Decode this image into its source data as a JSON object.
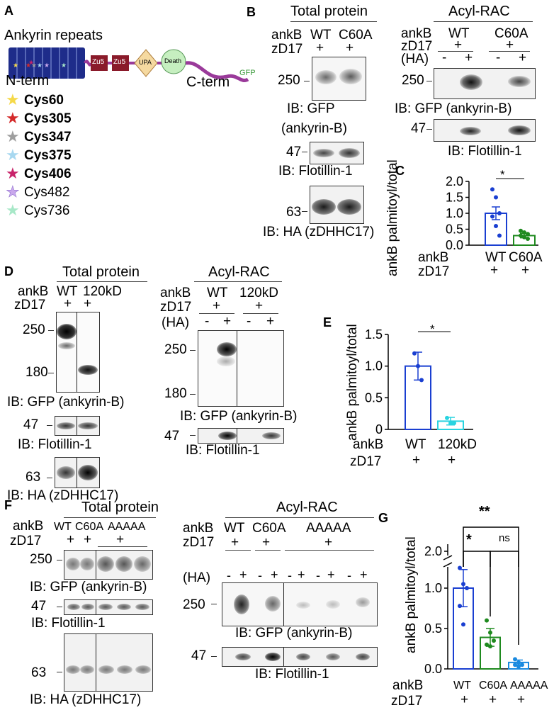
{
  "panelA": {
    "letter": "A",
    "title": "Ankyrin repeats",
    "nterm": "N-term",
    "cterm": "C-term",
    "gfp": "GFP",
    "domains": [
      "Zu5",
      "Zu5",
      "UPA",
      "Death"
    ],
    "cys": [
      {
        "label": "Cys60",
        "color": "#f5d94a",
        "bold": true
      },
      {
        "label": "Cys305",
        "color": "#d42a2a",
        "bold": true
      },
      {
        "label": "Cys347",
        "color": "#9e9e9e",
        "bold": true
      },
      {
        "label": "Cys375",
        "color": "#a8d8f0",
        "bold": true
      },
      {
        "label": "Cys406",
        "color": "#c8246a",
        "bold": true
      },
      {
        "label": "Cys482",
        "color": "#c9a8ec",
        "bold": false
      },
      {
        "label": "Cys736",
        "color": "#a8e8c8",
        "bold": false
      }
    ]
  },
  "panelB": {
    "letter": "B",
    "total_title": "Total protein",
    "acyl_title": "Acyl-RAC",
    "ankb": "ankB",
    "zd17": "zD17",
    "ha": "(HA)",
    "wt": "WT",
    "c60a": "C60A",
    "plus": "+",
    "minus": "-",
    "mw250": "250",
    "mw47": "47",
    "mw63": "63",
    "ib_gfp": "IB: GFP",
    "ankyrinb_paren": "(ankyrin-B)",
    "ib_flot": "IB: Flotillin-1",
    "ib_ha": "IB: HA (zDHHC17)",
    "ib_gfp_full": "IB: GFP (ankyrin-B)"
  },
  "panelC": {
    "letter": "C",
    "ylabel": "ankB palmitoyl/total",
    "sig": "*",
    "row1": "ankB",
    "row2": "zD17",
    "cats": [
      "WT",
      "C60A"
    ],
    "plus": "+",
    "ticks": [
      "0.0",
      "0.5",
      "1.0",
      "1.5",
      "2.0"
    ],
    "colors": {
      "WT": "#1a3fd1",
      "C60A": "#1f8a1f"
    }
  },
  "panelD": {
    "letter": "D",
    "total_title": "Total protein",
    "acyl_title": "Acyl-RAC",
    "ankb": "ankB",
    "zd17": "zD17",
    "ha": "(HA)",
    "wt": "WT",
    "mut": "120kD",
    "plus": "+",
    "minus": "-",
    "mw250": "250",
    "mw180": "180",
    "mw47": "47",
    "mw63": "63",
    "ib_gfp_full": "IB: GFP (ankyrin-B)",
    "ib_flot": "IB: Flotillin-1",
    "ib_ha": "IB: HA (zDHHC17)"
  },
  "panelE": {
    "letter": "E",
    "ylabel": "ankB palmitoyl/total",
    "sig": "*",
    "row1": "ankB",
    "row2": "zD17",
    "cats": [
      "WT",
      "120kD"
    ],
    "plus": "+",
    "ticks": [
      "0",
      "0.5",
      "1.0",
      "1.5"
    ],
    "colors": {
      "WT": "#1a3fd1",
      "120kD": "#29d3e0"
    }
  },
  "panelF": {
    "letter": "F",
    "total_title": "Total protein",
    "acyl_title": "Acyl-RAC",
    "ankb": "ankB",
    "zd17": "zD17",
    "ha": "(HA)",
    "wt": "WT",
    "c60a": "C60A",
    "aaaaa": "AAAAA",
    "plus": "+",
    "minus": "-",
    "mw250": "250",
    "mw47": "47",
    "mw63": "63",
    "ib_gfp_full": "IB: GFP (ankyrin-B)",
    "ib_flot": "IB: Flotillin-1",
    "ib_ha": "IB: HA (zDHHC17)"
  },
  "panelG": {
    "letter": "G",
    "ylabel": "ankB palmitoyl/total",
    "sig_big": "**",
    "sig_one": "*",
    "sig_ns": "ns",
    "row1": "ankB",
    "row2": "zD17",
    "cats": [
      "WT",
      "C60A",
      "AAAAA"
    ],
    "plus": "+",
    "ticks": [
      "0.0",
      "0.5",
      "1.0",
      "2.0"
    ],
    "colors": {
      "WT": "#1a3fd1",
      "C60A": "#1f8a1f",
      "AAAAA": "#1a8ae0"
    }
  },
  "chart_data": [
    {
      "type": "bar",
      "panel": "C",
      "categories": [
        "WT",
        "C60A"
      ],
      "values": [
        1.0,
        0.3
      ],
      "errors": [
        0.2,
        0.07
      ],
      "points": [
        [
          1.75,
          1.5,
          1.0,
          0.9,
          0.6,
          0.3
        ],
        [
          0.45,
          0.4,
          0.35,
          0.3,
          0.25,
          0.2
        ]
      ],
      "ylabel": "ankB palmitoyl/total",
      "ylim": [
        0,
        2.0
      ],
      "significance": "*"
    },
    {
      "type": "bar",
      "panel": "E",
      "categories": [
        "WT",
        "120kD"
      ],
      "values": [
        1.0,
        0.13
      ],
      "errors": [
        0.22,
        0.06
      ],
      "points": [
        [
          1.2,
          1.0,
          0.78
        ],
        [
          0.18,
          0.1,
          0.1
        ]
      ],
      "ylabel": "ankB palmitoyl/total",
      "ylim": [
        0,
        1.5
      ],
      "significance": "*"
    },
    {
      "type": "bar",
      "panel": "G",
      "categories": [
        "WT",
        "C60A",
        "AAAAA"
      ],
      "values": [
        1.0,
        0.39,
        0.08
      ],
      "errors": [
        0.23,
        0.11,
        0.03
      ],
      "points": [
        [
          1.25,
          1.05,
          1.0,
          0.78,
          0.55
        ],
        [
          0.6,
          0.45,
          0.35,
          0.3,
          0.28
        ],
        [
          0.12,
          0.08,
          0.05,
          0.05,
          0.03
        ]
      ],
      "ylabel": "ankB palmitoyl/total",
      "ylim": [
        0,
        2.0
      ],
      "axis_break": true,
      "significance": {
        "WT_vs_C60A": "*",
        "C60A_vs_AAAAA": "ns",
        "WT_vs_AAAAA": "**"
      }
    }
  ]
}
